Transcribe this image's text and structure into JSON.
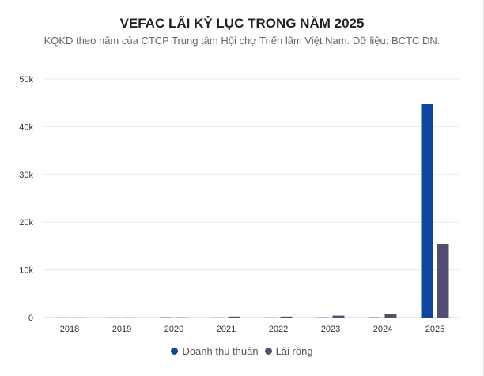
{
  "chart_data": {
    "type": "bar",
    "title": "VEFAC LÃI KỶ LỤC TRONG NĂM 2025",
    "subtitle": "KQKD theo năm của CTCP Trung tâm Hội chợ Triển lãm Việt Nam. Dữ liệu: BCTC DN.",
    "categories": [
      "2018",
      "2019",
      "2020",
      "2021",
      "2022",
      "2023",
      "2024",
      "2025"
    ],
    "ylim": [
      0,
      50000
    ],
    "yticks": [
      0,
      10000,
      20000,
      30000,
      40000,
      50000
    ],
    "ytick_labels": [
      "0",
      "10k",
      "20k",
      "30k",
      "40k",
      "50k"
    ],
    "grid": true,
    "legend": "bottom",
    "series": [
      {
        "name": "Doanh thu thuần",
        "color": "#0d47a1",
        "values": [
          20,
          20,
          60,
          30,
          30,
          50,
          60,
          44700
        ]
      },
      {
        "name": "Lãi ròng",
        "color": "#544f72",
        "values": [
          20,
          20,
          50,
          200,
          200,
          400,
          800,
          15400
        ]
      }
    ]
  }
}
